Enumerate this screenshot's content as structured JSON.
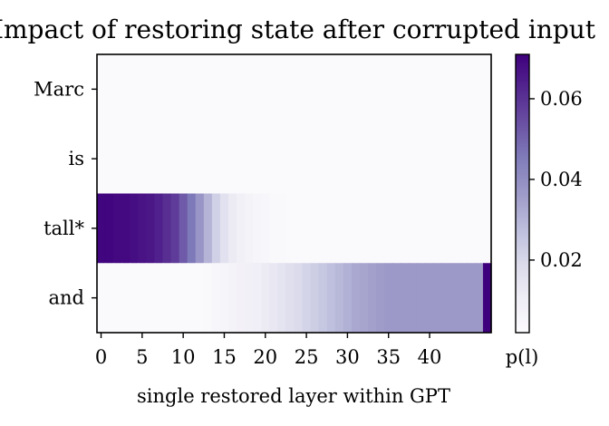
{
  "chart_data": {
    "type": "heatmap",
    "title": "Impact of restoring state after corrupted input",
    "xlabel": "single restored layer within GPT",
    "ylabel": "",
    "rows": [
      "Marc",
      "is",
      "tall*",
      "and"
    ],
    "x_ticks": [
      0,
      5,
      10,
      15,
      20,
      25,
      30,
      35,
      40
    ],
    "x_range": [
      0,
      47
    ],
    "colorbar": {
      "label": "p(l)",
      "ticks": [
        0.02,
        0.04,
        0.06
      ],
      "range": [
        0.002,
        0.071
      ],
      "colormap": "Purples",
      "low_color": "#fcfbfd",
      "high_color": "#3f007d"
    },
    "values": [
      [
        0.003,
        0.003,
        0.003,
        0.003,
        0.003,
        0.003,
        0.003,
        0.003,
        0.003,
        0.003,
        0.003,
        0.003,
        0.003,
        0.003,
        0.003,
        0.003,
        0.003,
        0.003,
        0.003,
        0.003,
        0.003,
        0.003,
        0.003,
        0.003,
        0.003,
        0.003,
        0.003,
        0.003,
        0.003,
        0.003,
        0.003,
        0.003,
        0.003,
        0.003,
        0.003,
        0.003,
        0.003,
        0.003,
        0.003,
        0.003,
        0.003,
        0.003,
        0.003,
        0.003,
        0.003,
        0.003,
        0.003,
        0.003
      ],
      [
        0.003,
        0.003,
        0.003,
        0.003,
        0.003,
        0.003,
        0.003,
        0.003,
        0.003,
        0.003,
        0.003,
        0.003,
        0.003,
        0.003,
        0.003,
        0.003,
        0.003,
        0.003,
        0.003,
        0.003,
        0.003,
        0.003,
        0.003,
        0.003,
        0.003,
        0.003,
        0.003,
        0.003,
        0.003,
        0.003,
        0.003,
        0.003,
        0.003,
        0.003,
        0.003,
        0.003,
        0.003,
        0.003,
        0.003,
        0.003,
        0.003,
        0.003,
        0.003,
        0.003,
        0.003,
        0.003,
        0.003,
        0.003
      ],
      [
        0.07,
        0.07,
        0.069,
        0.069,
        0.068,
        0.067,
        0.066,
        0.064,
        0.061,
        0.058,
        0.052,
        0.046,
        0.038,
        0.03,
        0.022,
        0.016,
        0.012,
        0.009,
        0.007,
        0.006,
        0.005,
        0.004,
        0.004,
        0.003,
        0.003,
        0.003,
        0.003,
        0.003,
        0.003,
        0.003,
        0.003,
        0.003,
        0.003,
        0.003,
        0.003,
        0.003,
        0.003,
        0.003,
        0.003,
        0.003,
        0.003,
        0.003,
        0.003,
        0.003,
        0.003,
        0.003,
        0.003,
        0.003
      ],
      [
        0.003,
        0.003,
        0.003,
        0.003,
        0.003,
        0.003,
        0.003,
        0.003,
        0.003,
        0.003,
        0.003,
        0.003,
        0.003,
        0.004,
        0.005,
        0.006,
        0.007,
        0.008,
        0.009,
        0.01,
        0.012,
        0.013,
        0.015,
        0.017,
        0.019,
        0.021,
        0.023,
        0.025,
        0.027,
        0.029,
        0.031,
        0.033,
        0.034,
        0.035,
        0.036,
        0.037,
        0.037,
        0.037,
        0.037,
        0.037,
        0.037,
        0.037,
        0.037,
        0.037,
        0.037,
        0.037,
        0.037,
        0.071
      ]
    ]
  }
}
